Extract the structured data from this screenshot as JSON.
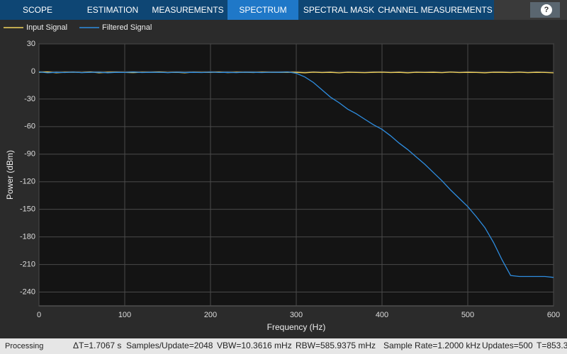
{
  "toolbar": {
    "tabs": [
      "SCOPE",
      "ESTIMATION",
      "MEASUREMENTS",
      "SPECTRUM",
      "SPECTRAL MASK",
      "CHANNEL MEASUREMENTS"
    ],
    "active_tab": 3,
    "help": "?"
  },
  "chart_data": {
    "type": "line",
    "xlabel": "Frequency (Hz)",
    "ylabel": "Power (dBm)",
    "x": [
      0,
      10,
      20,
      30,
      40,
      50,
      60,
      70,
      80,
      90,
      100,
      110,
      120,
      130,
      140,
      150,
      160,
      170,
      180,
      190,
      200,
      210,
      220,
      230,
      240,
      250,
      260,
      270,
      280,
      290,
      300,
      310,
      320,
      330,
      340,
      350,
      360,
      370,
      380,
      390,
      400,
      410,
      420,
      430,
      440,
      450,
      460,
      470,
      480,
      490,
      500,
      510,
      520,
      530,
      540,
      550,
      560,
      570,
      580,
      590,
      600
    ],
    "series": [
      {
        "name": "Input Signal",
        "color": "#f2d45c",
        "values": [
          -1,
          -0.5,
          -1.5,
          -1,
          -0.8,
          -1.2,
          -0.6,
          -1.4,
          -1,
          -0.7,
          -1.1,
          -1.3,
          -0.9,
          -1,
          -0.6,
          -1.2,
          -1,
          -1.4,
          -0.8,
          -1.1,
          -1,
          -0.7,
          -1.3,
          -1,
          -0.9,
          -1.2,
          -0.8,
          -1,
          -1.1,
          -0.9,
          -1,
          -1.4,
          -0.8,
          -1.2,
          -1,
          -1.5,
          -0.9,
          -1.1,
          -1.3,
          -1,
          -0.8,
          -1.2,
          -1,
          -1.4,
          -0.9,
          -1.1,
          -1,
          -1.3,
          -0.7,
          -1.2,
          -1,
          -1.1,
          -1.4,
          -0.9,
          -1,
          -1.2,
          -0.8,
          -1.3,
          -1,
          -1.1,
          -1.5
        ]
      },
      {
        "name": "Filtered Signal",
        "color": "#2e8de0",
        "values": [
          -0.5,
          -1.5,
          -1,
          -1.2,
          -0.7,
          -1.3,
          -1,
          -0.8,
          -1.4,
          -1,
          -1.1,
          -0.6,
          -1.2,
          -1,
          -0.9,
          -1.3,
          -0.8,
          -1.1,
          -1,
          -1.2,
          -0.7,
          -1.1,
          -1,
          -1.3,
          -0.8,
          -1,
          -1.2,
          -0.9,
          -1,
          -0.5,
          -2,
          -6,
          -12,
          -20,
          -28,
          -34,
          -41,
          -46,
          -52,
          -58,
          -63,
          -70,
          -78,
          -85,
          -93,
          -101,
          -110,
          -119,
          -129,
          -138,
          -147,
          -158,
          -170,
          -186,
          -205,
          -222,
          -223,
          -223,
          -223,
          -223,
          -224
        ]
      }
    ],
    "xlim": [
      0,
      600
    ],
    "ylim": [
      -255,
      30
    ],
    "xticks": [
      0,
      100,
      200,
      300,
      400,
      500,
      600
    ],
    "yticks": [
      30,
      0,
      -30,
      -60,
      -90,
      -120,
      -150,
      -180,
      -210,
      -240
    ],
    "grid": true
  },
  "status_bar": {
    "state": "Processing",
    "items": [
      "ΔT=1.7067 s",
      "Samples/Update=2048",
      "VBW=10.3616 mHz",
      "RBW=585.9375 mHz",
      "Sample Rate=1.2000 kHz",
      "Updates=500",
      "T=853.3"
    ]
  }
}
